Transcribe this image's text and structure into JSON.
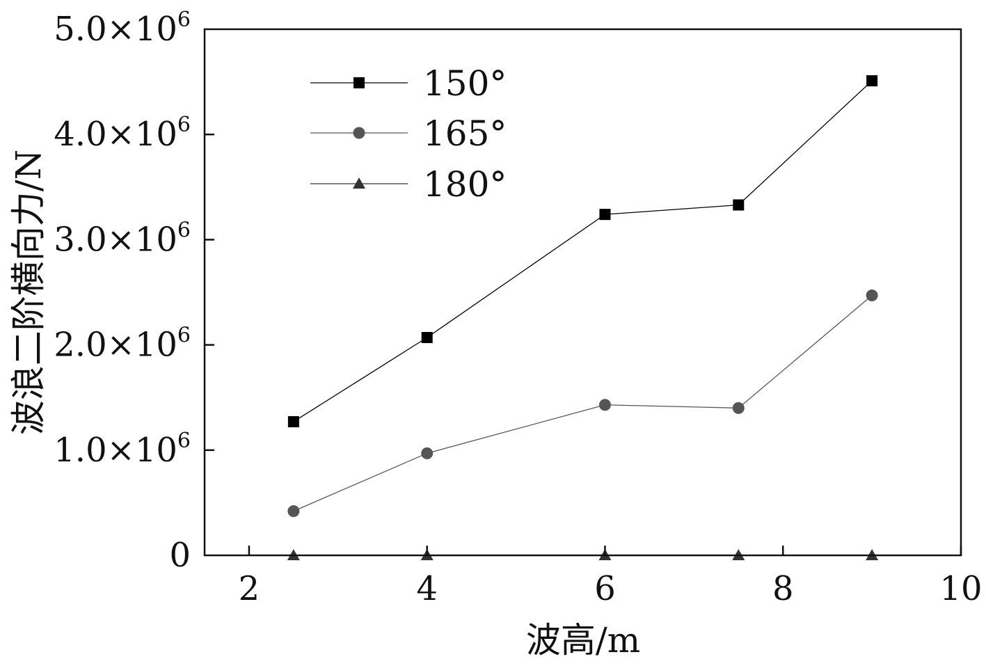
{
  "chart_data": {
    "type": "line",
    "title": "",
    "xlabel": "波高/m",
    "ylabel": "波浪二阶横向力/N",
    "xlim": [
      1.5,
      10
    ],
    "ylim": [
      0,
      5000000
    ],
    "x_ticks": [
      {
        "value": 2,
        "label": "2"
      },
      {
        "value": 4,
        "label": "4"
      },
      {
        "value": 6,
        "label": "6"
      },
      {
        "value": 8,
        "label": "8"
      },
      {
        "value": 10,
        "label": "10"
      }
    ],
    "y_ticks": [
      {
        "value": 0,
        "mant": "0",
        "exp": ""
      },
      {
        "value": 1000000,
        "mant": "1.0×10",
        "exp": "6"
      },
      {
        "value": 2000000,
        "mant": "2.0×10",
        "exp": "6"
      },
      {
        "value": 3000000,
        "mant": "3.0×10",
        "exp": "6"
      },
      {
        "value": 4000000,
        "mant": "4.0×10",
        "exp": "6"
      },
      {
        "value": 5000000,
        "mant": "5.0×10",
        "exp": "6"
      }
    ],
    "x": [
      2.5,
      4,
      6,
      7.5,
      9
    ],
    "series": [
      {
        "name": "150°",
        "marker": "square",
        "color": "#000000",
        "values": [
          1270000,
          2070000,
          3240000,
          3330000,
          4510000
        ]
      },
      {
        "name": "165°",
        "marker": "circle",
        "color": "#555555",
        "values": [
          420000,
          970000,
          1430000,
          1400000,
          2470000
        ]
      },
      {
        "name": "180°",
        "marker": "triangle",
        "color": "#333333",
        "values": [
          0,
          0,
          0,
          0,
          0
        ]
      }
    ],
    "legend_position": "top-left",
    "grid": false
  }
}
